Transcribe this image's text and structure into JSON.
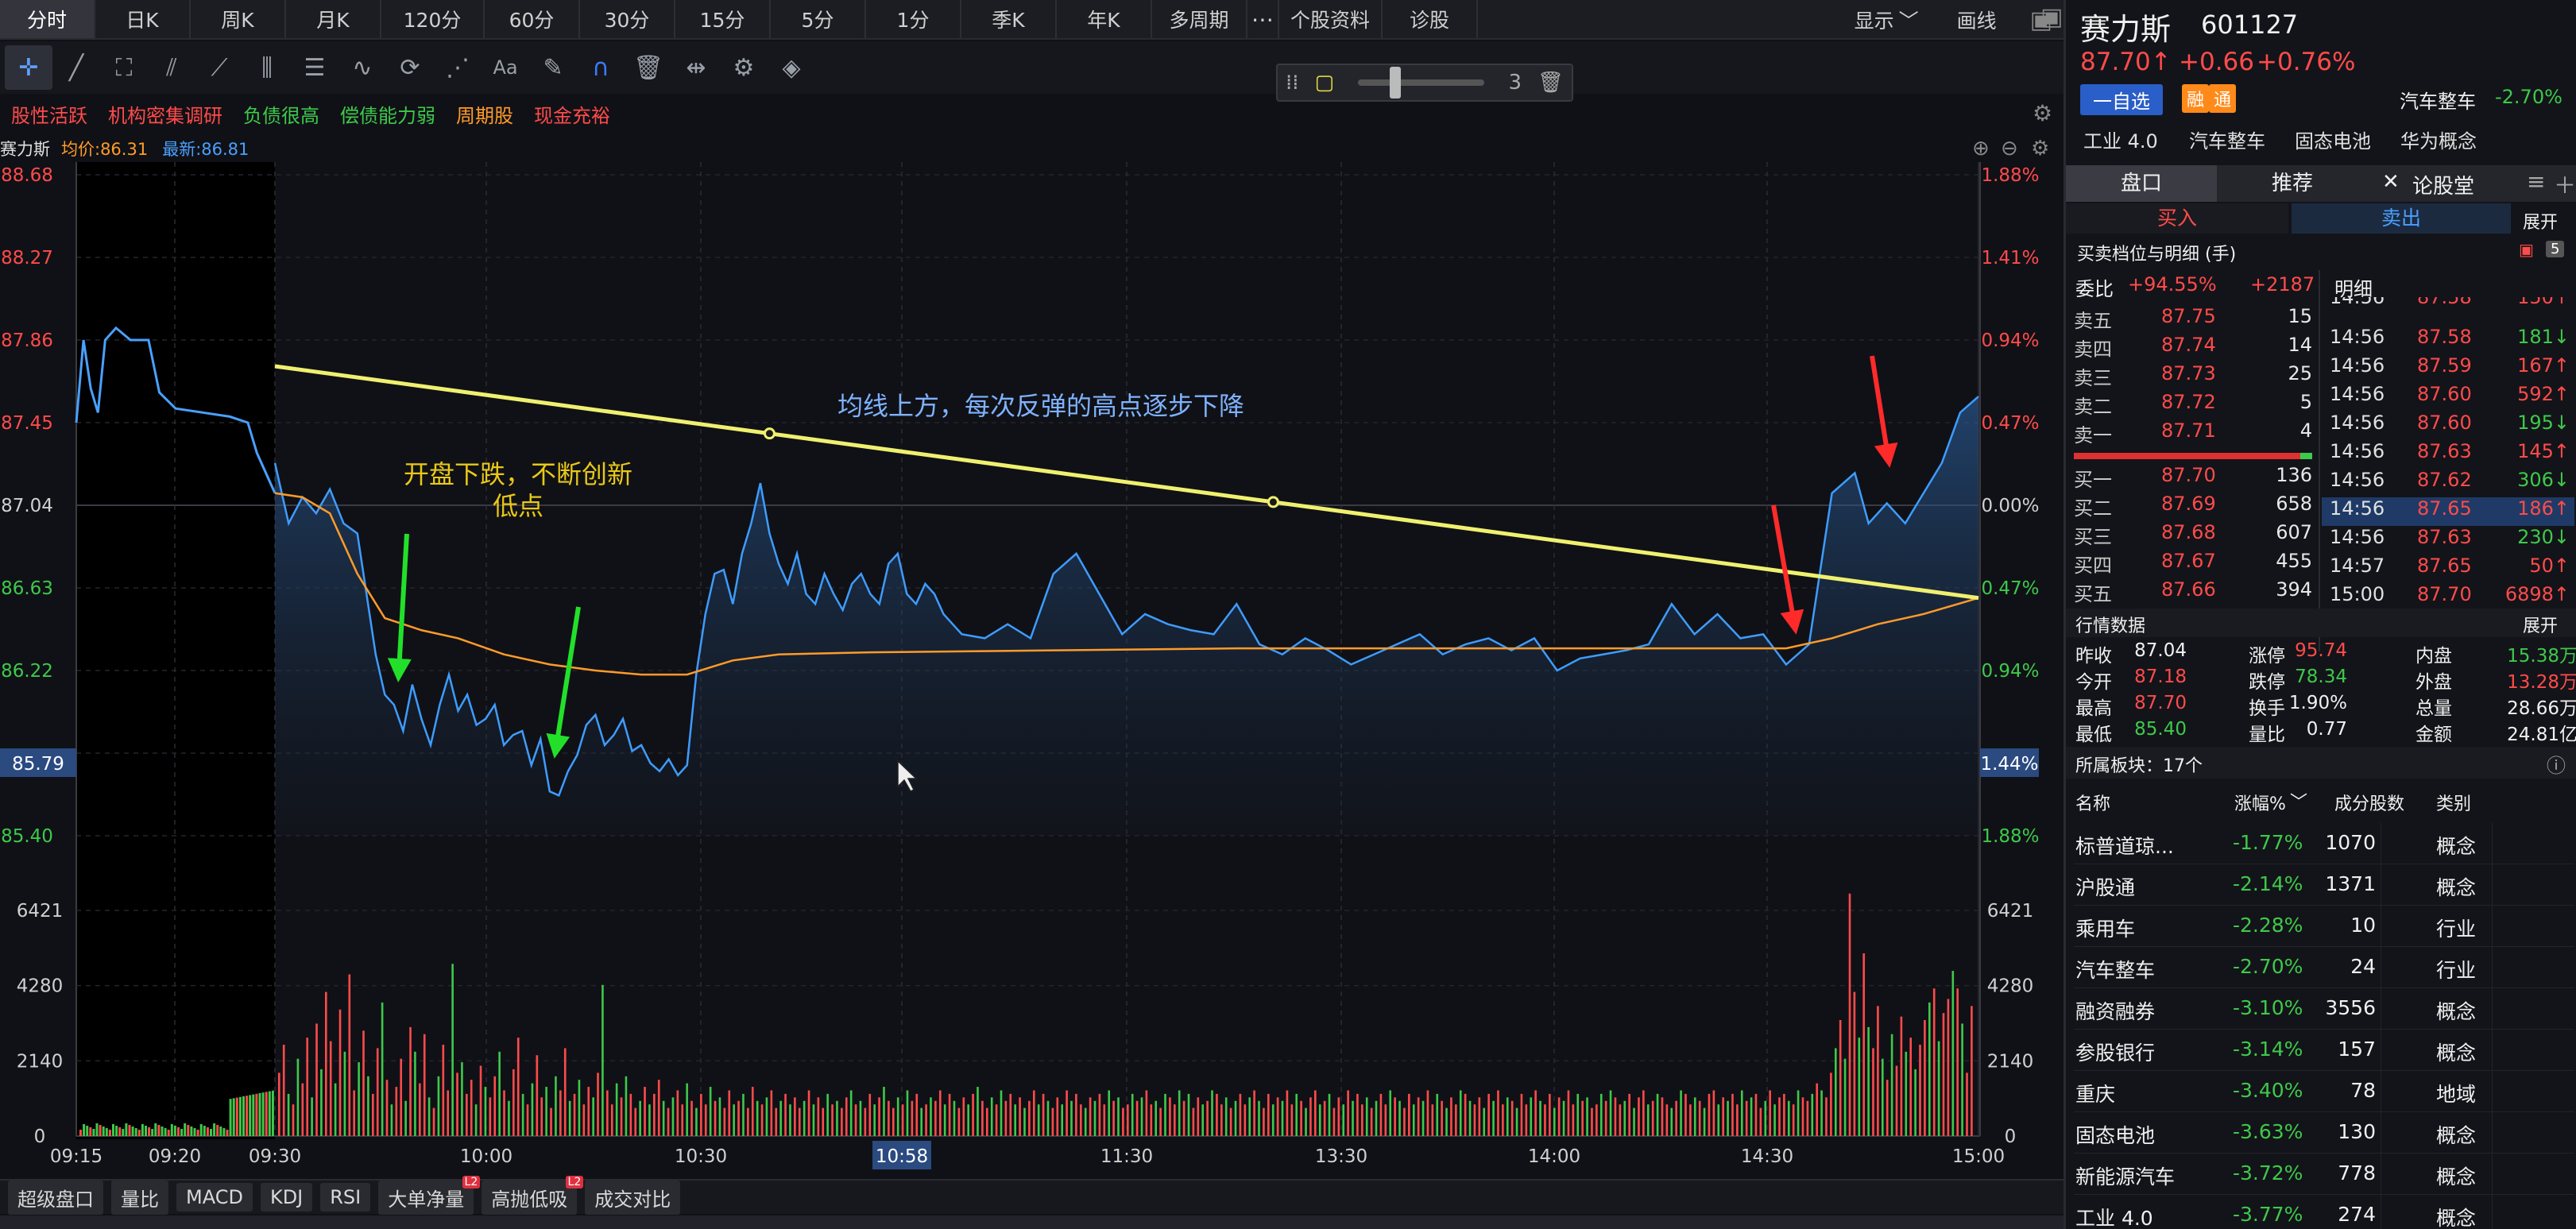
{
  "timeframe_tabs": [
    "分时",
    "日K",
    "周K",
    "月K",
    "120分",
    "60分",
    "30分",
    "15分",
    "5分",
    "1分",
    "季K",
    "年K",
    "多周期",
    "⋯",
    "个股资料",
    "诊股"
  ],
  "active_tab_index": 0,
  "topbar_right": {
    "display": "显示",
    "display_caret": "﹀",
    "draw": "画线"
  },
  "zoom": {
    "level": "3"
  },
  "tags": [
    {
      "text": "股性活跃",
      "color": "#ff4b4b"
    },
    {
      "text": "机构密集调研",
      "color": "#ff4b4b"
    },
    {
      "text": "负债很高",
      "color": "#3ec94b"
    },
    {
      "text": "偿债能力弱",
      "color": "#3ec94b"
    },
    {
      "text": "周期股",
      "color": "#ff9b2a"
    },
    {
      "text": "现金充裕",
      "color": "#ff4b4b"
    }
  ],
  "chart_header": {
    "name": "赛力斯",
    "avg_label": "均价:86.31",
    "last_label": "最新:86.81"
  },
  "chart_data": {
    "type": "line",
    "price_axis_left": [
      "88.68",
      "88.27",
      "87.86",
      "87.45",
      "87.04",
      "86.63",
      "86.22",
      "85.79",
      "85.40"
    ],
    "pct_axis_right": [
      "1.88%",
      "1.41%",
      "0.94%",
      "0.47%",
      "0.00%",
      "0.47%",
      "0.94%",
      "1.44%",
      "1.88%"
    ],
    "volume_axis": [
      "6421",
      "4280",
      "2140",
      "0"
    ],
    "time_labels": [
      "09:15",
      "09:20",
      "09:30",
      "10:00",
      "10:30",
      "10:58",
      "11:30",
      "13:30",
      "14:00",
      "14:30",
      "15:00"
    ],
    "cursor_time": "10:58",
    "cursor_price": "85.79",
    "cursor_pct": "1.44%",
    "ylim": [
      85.4,
      88.68
    ],
    "annotations": [
      {
        "text": "开盘下跌，不断创新",
        "color": "#e8c818"
      },
      {
        "text": "低点",
        "color": "#e8c818"
      },
      {
        "text": "均线上方，每次反弹的高点逐步下降",
        "color": "#7fb2ff"
      }
    ],
    "pre_market": [
      [
        0,
        87.45
      ],
      [
        4,
        87.86
      ],
      [
        8,
        87.62
      ],
      [
        12,
        87.5
      ],
      [
        16,
        87.86
      ],
      [
        22,
        87.92
      ],
      [
        30,
        87.86
      ],
      [
        40,
        87.86
      ],
      [
        46,
        87.6
      ],
      [
        55,
        87.52
      ],
      [
        70,
        87.5
      ],
      [
        85,
        87.48
      ],
      [
        95,
        87.45
      ],
      [
        100,
        87.3
      ],
      [
        110,
        87.1
      ]
    ],
    "price_series": [
      [
        0,
        87.25
      ],
      [
        3,
        86.95
      ],
      [
        6,
        87.08
      ],
      [
        9,
        87.0
      ],
      [
        12,
        87.12
      ],
      [
        15,
        86.95
      ],
      [
        18,
        86.9
      ],
      [
        20,
        86.6
      ],
      [
        22,
        86.3
      ],
      [
        24,
        86.1
      ],
      [
        26,
        86.05
      ],
      [
        28,
        85.92
      ],
      [
        30,
        86.15
      ],
      [
        32,
        85.98
      ],
      [
        34,
        85.85
      ],
      [
        36,
        86.05
      ],
      [
        38,
        86.2
      ],
      [
        40,
        86.02
      ],
      [
        42,
        86.1
      ],
      [
        44,
        85.95
      ],
      [
        46,
        85.98
      ],
      [
        48,
        86.05
      ],
      [
        50,
        85.85
      ],
      [
        52,
        85.9
      ],
      [
        54,
        85.92
      ],
      [
        56,
        85.75
      ],
      [
        58,
        85.88
      ],
      [
        60,
        85.62
      ],
      [
        62,
        85.6
      ],
      [
        64,
        85.72
      ],
      [
        66,
        85.8
      ],
      [
        68,
        85.95
      ],
      [
        70,
        86.0
      ],
      [
        72,
        85.85
      ],
      [
        74,
        85.9
      ],
      [
        76,
        85.98
      ],
      [
        78,
        85.82
      ],
      [
        80,
        85.85
      ],
      [
        82,
        85.76
      ],
      [
        84,
        85.72
      ],
      [
        86,
        85.78
      ],
      [
        88,
        85.7
      ],
      [
        90,
        85.75
      ],
      [
        92,
        86.2
      ],
      [
        94,
        86.5
      ],
      [
        96,
        86.7
      ],
      [
        98,
        86.72
      ],
      [
        100,
        86.55
      ],
      [
        102,
        86.8
      ],
      [
        104,
        86.95
      ],
      [
        106,
        87.15
      ],
      [
        108,
        86.9
      ],
      [
        110,
        86.75
      ],
      [
        112,
        86.65
      ],
      [
        114,
        86.8
      ],
      [
        116,
        86.6
      ],
      [
        118,
        86.55
      ],
      [
        120,
        86.7
      ],
      [
        122,
        86.6
      ],
      [
        124,
        86.52
      ],
      [
        126,
        86.65
      ],
      [
        128,
        86.7
      ],
      [
        130,
        86.6
      ],
      [
        132,
        86.55
      ],
      [
        134,
        86.75
      ],
      [
        136,
        86.8
      ],
      [
        138,
        86.6
      ],
      [
        140,
        86.55
      ],
      [
        142,
        86.65
      ],
      [
        144,
        86.6
      ],
      [
        146,
        86.5
      ],
      [
        150,
        86.4
      ],
      [
        155,
        86.38
      ],
      [
        160,
        86.45
      ],
      [
        165,
        86.38
      ],
      [
        170,
        86.7
      ],
      [
        175,
        86.8
      ],
      [
        180,
        86.6
      ],
      [
        185,
        86.4
      ],
      [
        190,
        86.5
      ],
      [
        195,
        86.45
      ],
      [
        200,
        86.42
      ],
      [
        205,
        86.4
      ],
      [
        210,
        86.55
      ],
      [
        215,
        86.35
      ],
      [
        220,
        86.3
      ],
      [
        225,
        86.38
      ],
      [
        230,
        86.32
      ],
      [
        235,
        86.25
      ],
      [
        240,
        86.3
      ],
      [
        245,
        86.35
      ],
      [
        250,
        86.4
      ],
      [
        255,
        86.3
      ],
      [
        260,
        86.35
      ],
      [
        265,
        86.38
      ],
      [
        270,
        86.32
      ],
      [
        275,
        86.38
      ],
      [
        280,
        86.22
      ],
      [
        285,
        86.28
      ],
      [
        290,
        86.3
      ],
      [
        295,
        86.32
      ],
      [
        300,
        86.35
      ],
      [
        305,
        86.55
      ],
      [
        310,
        86.4
      ],
      [
        315,
        86.5
      ],
      [
        320,
        86.38
      ],
      [
        325,
        86.4
      ],
      [
        330,
        86.25
      ],
      [
        335,
        86.35
      ],
      [
        340,
        87.1
      ],
      [
        345,
        87.2
      ],
      [
        348,
        86.95
      ],
      [
        352,
        87.05
      ],
      [
        356,
        86.95
      ],
      [
        360,
        87.1
      ],
      [
        364,
        87.25
      ],
      [
        368,
        87.5
      ],
      [
        372,
        87.58
      ]
    ],
    "avg_series": [
      [
        0,
        87.1
      ],
      [
        6,
        87.08
      ],
      [
        12,
        87.0
      ],
      [
        18,
        86.7
      ],
      [
        24,
        86.48
      ],
      [
        32,
        86.42
      ],
      [
        40,
        86.38
      ],
      [
        50,
        86.3
      ],
      [
        60,
        86.25
      ],
      [
        70,
        86.22
      ],
      [
        80,
        86.2
      ],
      [
        90,
        86.2
      ],
      [
        100,
        86.27
      ],
      [
        110,
        86.3
      ],
      [
        130,
        86.31
      ],
      [
        170,
        86.32
      ],
      [
        210,
        86.33
      ],
      [
        250,
        86.33
      ],
      [
        300,
        86.33
      ],
      [
        330,
        86.33
      ],
      [
        340,
        86.38
      ],
      [
        350,
        86.45
      ],
      [
        360,
        86.5
      ],
      [
        372,
        86.58
      ]
    ],
    "trend_line": [
      [
        0,
        87.73
      ],
      [
        372,
        86.58
      ]
    ],
    "volume_bars": [
      1800,
      2600,
      1200,
      900,
      2200,
      1500,
      2800,
      1100,
      3200,
      1900,
      4100,
      2700,
      1500,
      3600,
      2400,
      4600,
      1300,
      2100,
      3000,
      1700,
      1200,
      2500,
      3800,
      1600,
      900,
      1400,
      2200,
      1000,
      3100,
      2400,
      1500,
      2900,
      1100,
      800,
      1700,
      2600,
      1300,
      4900,
      1800,
      2100,
      1200,
      1600,
      900,
      2000,
      1400,
      1100,
      1700,
      2400,
      1300,
      1000,
      1900,
      2800,
      1200,
      900,
      1500,
      2300,
      1100,
      1400,
      800,
      1700,
      1300,
      2500,
      1000,
      1200,
      1600,
      900,
      1400,
      1100,
      1800,
      4300,
      1300,
      900,
      1500,
      1100,
      1700,
      1200,
      800,
      1000,
      1400,
      900,
      1200,
      1600,
      1000,
      800,
      1100,
      1300,
      900,
      1500,
      1000,
      800,
      1200,
      900,
      1400,
      1000,
      1100,
      800,
      1300,
      900,
      1000,
      1200,
      800,
      1400,
      1000,
      900,
      1100,
      1300,
      800,
      1000,
      1200,
      900,
      1100,
      800,
      1000,
      1300,
      900,
      1100,
      800,
      1200,
      900,
      1000,
      800,
      1100,
      1300,
      900,
      1000,
      800,
      1200,
      900,
      1100,
      1400,
      1000,
      800,
      1100,
      900,
      1300,
      1000,
      1200,
      800,
      900,
      1100,
      1000,
      1300,
      900,
      1200,
      1000,
      800,
      1100,
      900,
      1200,
      1400,
      1000,
      800,
      1100,
      900,
      1300,
      1000,
      1200,
      900,
      1100,
      800,
      1000,
      1300,
      900,
      1200,
      1000,
      800,
      1100,
      900,
      1300,
      1000,
      1200,
      900,
      800,
      1100,
      1000,
      1200,
      900,
      1300,
      1000,
      1100,
      800,
      900,
      1200,
      1000,
      1100,
      1300,
      900,
      1000,
      800,
      1200,
      1100,
      900,
      1300,
      1000,
      1200,
      800,
      1100,
      900,
      1000,
      1300,
      1200,
      900,
      1100,
      800,
      1000,
      1200,
      900,
      1100,
      1300,
      1000,
      800,
      1200,
      900,
      1100,
      1000,
      1300,
      900,
      1200,
      1000,
      800,
      1100,
      1300,
      900,
      1000,
      1200,
      800,
      1100,
      900,
      1300,
      1000,
      1200,
      900,
      1100,
      800,
      1000,
      1200,
      900,
      1300,
      1100,
      1000,
      800,
      1200,
      900,
      1100,
      1000,
      1300,
      900,
      1200,
      1000,
      800,
      1100,
      900,
      1300,
      1200,
      1000,
      900,
      1100,
      800,
      1200,
      1000,
      1300,
      900,
      1100,
      1000,
      800,
      1200,
      900,
      1100,
      1300,
      1000,
      900,
      1200,
      800,
      1100,
      1000,
      1300,
      900,
      1200,
      1000,
      1100,
      800,
      900,
      1200,
      1000,
      1300,
      1100,
      900,
      1000,
      1200,
      800,
      1100,
      1300,
      900,
      1000,
      1200,
      1100,
      900,
      800,
      1000,
      1300,
      1200,
      900,
      1100,
      1000,
      800,
      1200,
      1300,
      900,
      1100,
      1000,
      1200,
      900,
      1300,
      1000,
      1100,
      1200,
      800,
      1000,
      1300,
      900,
      1100,
      1200,
      1000,
      900,
      1300,
      1100,
      1000,
      1200,
      1500,
      1300,
      1100,
      1800,
      2500,
      3300,
      2200,
      6900,
      4100,
      2800,
      5200,
      3100,
      2500,
      3700,
      2200,
      1600,
      2900,
      2000,
      3400,
      2400,
      2800,
      1900,
      2600,
      3300,
      3800,
      4200,
      2700,
      3500,
      3900,
      4700,
      4200,
      3200,
      1800,
      3700
    ]
  },
  "bottom_tabs": [
    {
      "label": "超级盘口",
      "l2": ""
    },
    {
      "label": "量比",
      "l2": ""
    },
    {
      "label": "MACD",
      "l2": ""
    },
    {
      "label": "KDJ",
      "l2": ""
    },
    {
      "label": "RSI",
      "l2": ""
    },
    {
      "label": "大单净量",
      "l2": "L2"
    },
    {
      "label": "高抛低吸",
      "l2": "L2"
    },
    {
      "label": "成交对比",
      "l2": ""
    }
  ],
  "panel": {
    "stock_name": "赛力斯",
    "stock_code": "601127",
    "price": "87.70↑",
    "change": "+0.66",
    "change_pct": "+0.76%",
    "sector_name": "汽车整车",
    "sector_pct": "-2.70%",
    "watch_button": "一自选",
    "rong_badge": "融",
    "tong_badge": "通",
    "concepts": [
      "工业 4.0",
      "汽车整车",
      "固态电池",
      "华为概念"
    ],
    "tabs": [
      "盘口",
      "推荐",
      "论股堂"
    ],
    "tab_close": "✕",
    "plus": "＋",
    "buy": "买入",
    "sell": "卖出",
    "expand": "展开",
    "orderbook_title": "买卖档位与明细 (手)",
    "orderbook_badge": "5",
    "weibi_label": "委比",
    "weibi_pct": "+94.55%",
    "weibi_num": "+2187",
    "detail_label": "明细",
    "asks": [
      {
        "n": "卖五",
        "p": "87.75",
        "v": "15"
      },
      {
        "n": "卖四",
        "p": "87.74",
        "v": "14"
      },
      {
        "n": "卖三",
        "p": "87.73",
        "v": "25"
      },
      {
        "n": "卖二",
        "p": "87.72",
        "v": "5"
      },
      {
        "n": "卖一",
        "p": "87.71",
        "v": "4"
      }
    ],
    "bids": [
      {
        "n": "买一",
        "p": "87.70",
        "v": "136"
      },
      {
        "n": "买二",
        "p": "87.69",
        "v": "658"
      },
      {
        "n": "买三",
        "p": "87.68",
        "v": "607"
      },
      {
        "n": "买四",
        "p": "87.67",
        "v": "455"
      },
      {
        "n": "买五",
        "p": "87.66",
        "v": "394"
      }
    ],
    "ticks": [
      {
        "t": "14:56",
        "p": "87.58",
        "v": "150↑",
        "c": "red"
      },
      {
        "t": "14:56",
        "p": "87.58",
        "v": "181↓",
        "c": "green"
      },
      {
        "t": "14:56",
        "p": "87.59",
        "v": "167↑",
        "c": "red"
      },
      {
        "t": "14:56",
        "p": "87.60",
        "v": "592↑",
        "c": "red"
      },
      {
        "t": "14:56",
        "p": "87.60",
        "v": "195↓",
        "c": "green"
      },
      {
        "t": "14:56",
        "p": "87.63",
        "v": "145↑",
        "c": "red"
      },
      {
        "t": "14:56",
        "p": "87.62",
        "v": "306↓",
        "c": "green"
      },
      {
        "t": "14:56",
        "p": "87.65",
        "v": "186↑",
        "c": "red"
      },
      {
        "t": "14:56",
        "p": "87.63",
        "v": "230↓",
        "c": "green"
      },
      {
        "t": "14:57",
        "p": "87.65",
        "v": "50↑",
        "c": "red"
      },
      {
        "t": "15:00",
        "p": "87.70",
        "v": "6898↑",
        "c": "red"
      }
    ],
    "market_title": "行情数据",
    "market_expand": "展开",
    "market": [
      [
        {
          "k": "昨收",
          "v": "87.04",
          "c": "white"
        },
        {
          "k": "涨停",
          "v": "95.74",
          "c": "red"
        },
        {
          "k": "内盘",
          "v": "15.38万",
          "c": "green"
        }
      ],
      [
        {
          "k": "今开",
          "v": "87.18",
          "c": "red"
        },
        {
          "k": "跌停",
          "v": "78.34",
          "c": "green"
        },
        {
          "k": "外盘",
          "v": "13.28万",
          "c": "red"
        }
      ],
      [
        {
          "k": "最高",
          "v": "87.70",
          "c": "red"
        },
        {
          "k": "换手",
          "v": "1.90%",
          "c": "white"
        },
        {
          "k": "总量",
          "v": "28.66万",
          "c": "white"
        }
      ],
      [
        {
          "k": "最低",
          "v": "85.40",
          "c": "green"
        },
        {
          "k": "量比",
          "v": "0.77",
          "c": "white"
        },
        {
          "k": "金额",
          "v": "24.81亿",
          "c": "white"
        }
      ]
    ],
    "sectors_title": "所属板块：17个",
    "sector_headers": [
      "名称",
      "涨幅%",
      "成分股数",
      "类别"
    ],
    "sectors": [
      {
        "name": "标普道琼...",
        "pct": "-1.77%",
        "count": "1070",
        "type": "概念"
      },
      {
        "name": "沪股通",
        "pct": "-2.14%",
        "count": "1371",
        "type": "概念"
      },
      {
        "name": "乘用车",
        "pct": "-2.28%",
        "count": "10",
        "type": "行业"
      },
      {
        "name": "汽车整车",
        "pct": "-2.70%",
        "count": "24",
        "type": "行业"
      },
      {
        "name": "融资融券",
        "pct": "-3.10%",
        "count": "3556",
        "type": "概念"
      },
      {
        "name": "参股银行",
        "pct": "-3.14%",
        "count": "157",
        "type": "概念"
      },
      {
        "name": "重庆",
        "pct": "-3.40%",
        "count": "78",
        "type": "地域"
      },
      {
        "name": "固态电池",
        "pct": "-3.63%",
        "count": "130",
        "type": "概念"
      },
      {
        "name": "新能源汽车",
        "pct": "-3.72%",
        "count": "778",
        "type": "概念"
      },
      {
        "name": "工业 4.0",
        "pct": "-3.77%",
        "count": "274",
        "type": "概念"
      }
    ]
  }
}
